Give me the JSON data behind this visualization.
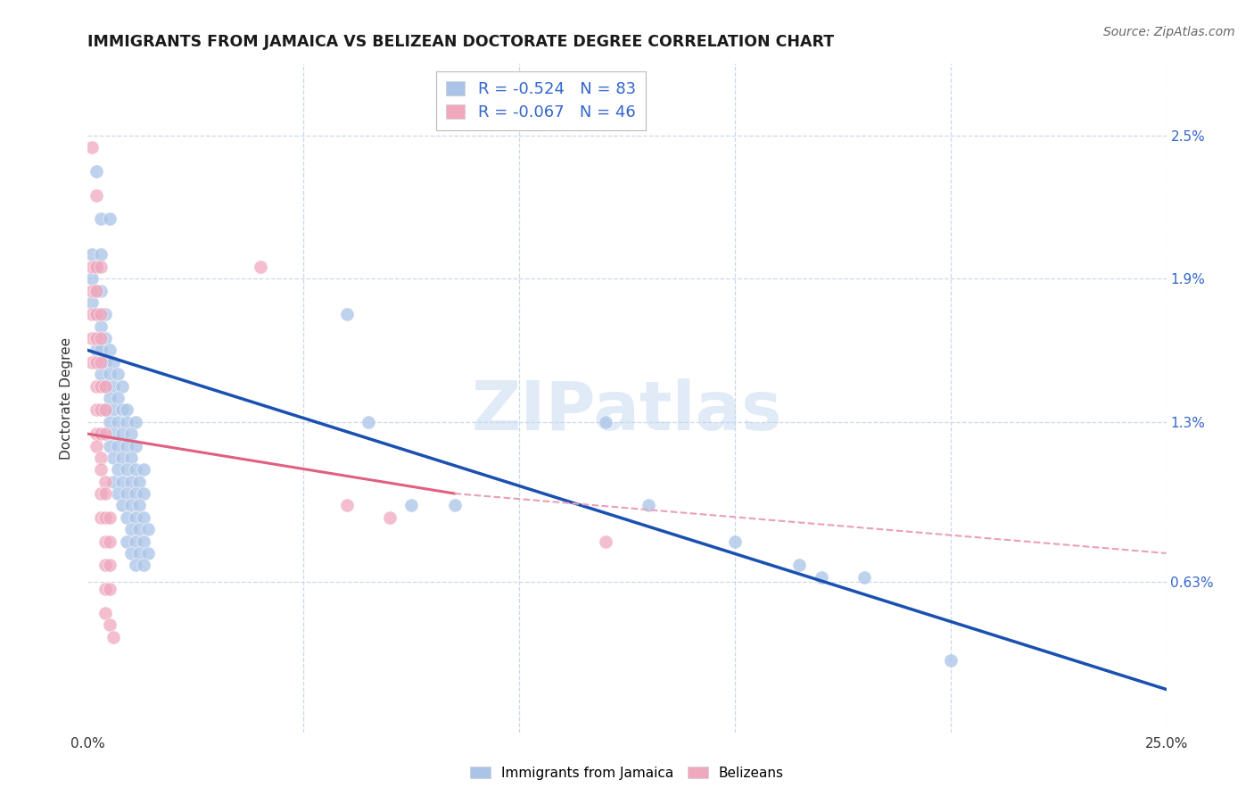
{
  "title": "IMMIGRANTS FROM JAMAICA VS BELIZEAN DOCTORATE DEGREE CORRELATION CHART",
  "source": "Source: ZipAtlas.com",
  "ylabel": "Doctorate Degree",
  "xlim": [
    0.0,
    0.25
  ],
  "ylim": [
    0.0,
    0.028
  ],
  "ytick_labels": [
    "0.63%",
    "1.3%",
    "1.9%",
    "2.5%"
  ],
  "ytick_vals": [
    0.0063,
    0.013,
    0.019,
    0.025
  ],
  "watermark": "ZIPatlas",
  "jamaica_color": "#aac4e8",
  "belize_color": "#f0a8be",
  "jamaica_line_color": "#1a50b0",
  "belize_line_color": "#e06080",
  "belize_line_dashed_color": "#e8a0b8",
  "legend_text_color": "#3366cc",
  "background_color": "#ffffff",
  "grid_color": "#ccd8e8",
  "right_axis_color": "#3366cc",
  "jamaica_scatter": [
    [
      0.002,
      0.0235
    ],
    [
      0.003,
      0.0215
    ],
    [
      0.005,
      0.0215
    ],
    [
      0.001,
      0.02
    ],
    [
      0.003,
      0.02
    ],
    [
      0.002,
      0.0195
    ],
    [
      0.001,
      0.019
    ],
    [
      0.002,
      0.0185
    ],
    [
      0.003,
      0.0185
    ],
    [
      0.001,
      0.018
    ],
    [
      0.002,
      0.0175
    ],
    [
      0.004,
      0.0175
    ],
    [
      0.003,
      0.017
    ],
    [
      0.004,
      0.0165
    ],
    [
      0.002,
      0.016
    ],
    [
      0.003,
      0.016
    ],
    [
      0.005,
      0.016
    ],
    [
      0.004,
      0.0155
    ],
    [
      0.006,
      0.0155
    ],
    [
      0.003,
      0.015
    ],
    [
      0.005,
      0.015
    ],
    [
      0.007,
      0.015
    ],
    [
      0.004,
      0.0145
    ],
    [
      0.006,
      0.0145
    ],
    [
      0.008,
      0.0145
    ],
    [
      0.005,
      0.014
    ],
    [
      0.007,
      0.014
    ],
    [
      0.004,
      0.0135
    ],
    [
      0.006,
      0.0135
    ],
    [
      0.008,
      0.0135
    ],
    [
      0.009,
      0.0135
    ],
    [
      0.005,
      0.013
    ],
    [
      0.007,
      0.013
    ],
    [
      0.009,
      0.013
    ],
    [
      0.011,
      0.013
    ],
    [
      0.003,
      0.0125
    ],
    [
      0.006,
      0.0125
    ],
    [
      0.008,
      0.0125
    ],
    [
      0.01,
      0.0125
    ],
    [
      0.005,
      0.012
    ],
    [
      0.007,
      0.012
    ],
    [
      0.009,
      0.012
    ],
    [
      0.011,
      0.012
    ],
    [
      0.006,
      0.0115
    ],
    [
      0.008,
      0.0115
    ],
    [
      0.01,
      0.0115
    ],
    [
      0.007,
      0.011
    ],
    [
      0.009,
      0.011
    ],
    [
      0.011,
      0.011
    ],
    [
      0.013,
      0.011
    ],
    [
      0.006,
      0.0105
    ],
    [
      0.008,
      0.0105
    ],
    [
      0.01,
      0.0105
    ],
    [
      0.012,
      0.0105
    ],
    [
      0.007,
      0.01
    ],
    [
      0.009,
      0.01
    ],
    [
      0.011,
      0.01
    ],
    [
      0.013,
      0.01
    ],
    [
      0.008,
      0.0095
    ],
    [
      0.01,
      0.0095
    ],
    [
      0.012,
      0.0095
    ],
    [
      0.009,
      0.009
    ],
    [
      0.011,
      0.009
    ],
    [
      0.013,
      0.009
    ],
    [
      0.01,
      0.0085
    ],
    [
      0.012,
      0.0085
    ],
    [
      0.014,
      0.0085
    ],
    [
      0.009,
      0.008
    ],
    [
      0.011,
      0.008
    ],
    [
      0.013,
      0.008
    ],
    [
      0.01,
      0.0075
    ],
    [
      0.012,
      0.0075
    ],
    [
      0.014,
      0.0075
    ],
    [
      0.011,
      0.007
    ],
    [
      0.013,
      0.007
    ],
    [
      0.06,
      0.0175
    ],
    [
      0.065,
      0.013
    ],
    [
      0.075,
      0.0095
    ],
    [
      0.085,
      0.0095
    ],
    [
      0.12,
      0.013
    ],
    [
      0.13,
      0.0095
    ],
    [
      0.15,
      0.008
    ],
    [
      0.165,
      0.007
    ],
    [
      0.17,
      0.0065
    ],
    [
      0.18,
      0.0065
    ],
    [
      0.2,
      0.003
    ]
  ],
  "belize_scatter": [
    [
      0.001,
      0.0245
    ],
    [
      0.002,
      0.0225
    ],
    [
      0.001,
      0.0195
    ],
    [
      0.002,
      0.0195
    ],
    [
      0.003,
      0.0195
    ],
    [
      0.001,
      0.0185
    ],
    [
      0.002,
      0.0185
    ],
    [
      0.001,
      0.0175
    ],
    [
      0.002,
      0.0175
    ],
    [
      0.003,
      0.0175
    ],
    [
      0.001,
      0.0165
    ],
    [
      0.002,
      0.0165
    ],
    [
      0.003,
      0.0165
    ],
    [
      0.001,
      0.0155
    ],
    [
      0.002,
      0.0155
    ],
    [
      0.003,
      0.0155
    ],
    [
      0.002,
      0.0145
    ],
    [
      0.003,
      0.0145
    ],
    [
      0.004,
      0.0145
    ],
    [
      0.002,
      0.0135
    ],
    [
      0.003,
      0.0135
    ],
    [
      0.004,
      0.0135
    ],
    [
      0.002,
      0.0125
    ],
    [
      0.003,
      0.0125
    ],
    [
      0.004,
      0.0125
    ],
    [
      0.002,
      0.012
    ],
    [
      0.003,
      0.0115
    ],
    [
      0.003,
      0.011
    ],
    [
      0.004,
      0.0105
    ],
    [
      0.003,
      0.01
    ],
    [
      0.004,
      0.01
    ],
    [
      0.003,
      0.009
    ],
    [
      0.004,
      0.009
    ],
    [
      0.005,
      0.009
    ],
    [
      0.004,
      0.008
    ],
    [
      0.005,
      0.008
    ],
    [
      0.004,
      0.007
    ],
    [
      0.005,
      0.007
    ],
    [
      0.004,
      0.006
    ],
    [
      0.005,
      0.006
    ],
    [
      0.004,
      0.005
    ],
    [
      0.005,
      0.0045
    ],
    [
      0.006,
      0.004
    ],
    [
      0.04,
      0.0195
    ],
    [
      0.06,
      0.0095
    ],
    [
      0.07,
      0.009
    ],
    [
      0.12,
      0.008
    ]
  ],
  "jamaica_trendline": [
    [
      0.0,
      0.016
    ],
    [
      0.25,
      0.0018
    ]
  ],
  "belize_trendline_solid": [
    [
      0.0,
      0.0125
    ],
    [
      0.085,
      0.01
    ]
  ],
  "belize_trendline_dashed": [
    [
      0.085,
      0.01
    ],
    [
      0.25,
      0.0075
    ]
  ]
}
